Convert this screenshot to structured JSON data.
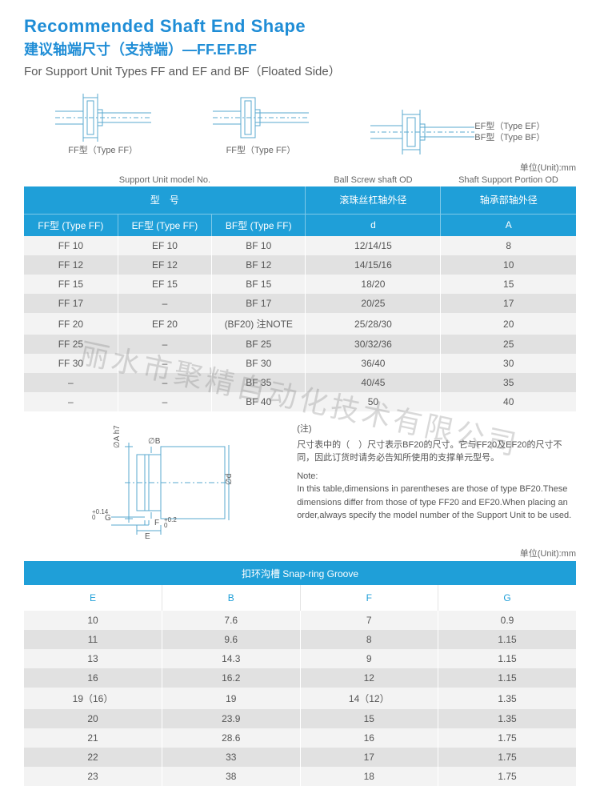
{
  "header": {
    "title_en": "Recommended Shaft End Shape",
    "title_cn": "建议轴端尺寸（支持端）—FF.EF.BF",
    "subtitle": "For Support Unit Types FF and EF and BF（Floated Side）",
    "unit_label": "单位(Unit):mm"
  },
  "diagram_labels": {
    "ff1": "FF型（Type FF）",
    "ff2": "FF型（Type FF）",
    "ef": "EF型（Type EF）",
    "bf": "BF型（Type BF）"
  },
  "col_labels_en": {
    "c1": "Support Unit model No.",
    "c2": "Ball Screw shaft OD",
    "c3": "Shaft Support Portion OD"
  },
  "table1": {
    "head_row1": {
      "h1": "型　号",
      "h2": "滚珠丝杠轴外径",
      "h3": "轴承部轴外径"
    },
    "head_row2": {
      "h1": "FF型 (Type FF)",
      "h2": "EF型 (Type FF)",
      "h3": "BF型 (Type FF)",
      "h4": "d",
      "h5": "A"
    },
    "rows": [
      [
        "FF 10",
        "EF 10",
        "BF 10",
        "12/14/15",
        "8"
      ],
      [
        "FF 12",
        "EF 12",
        "BF 12",
        "14/15/16",
        "10"
      ],
      [
        "FF 15",
        "EF 15",
        "BF 15",
        "18/20",
        "15"
      ],
      [
        "FF 17",
        "–",
        "BF 17",
        "20/25",
        "17"
      ],
      [
        "FF 20",
        "EF 20",
        "(BF20) 注NOTE",
        "25/28/30",
        "20"
      ],
      [
        "FF 25",
        "–",
        "BF 25",
        "30/32/36",
        "25"
      ],
      [
        "FF 30",
        "–",
        "BF 30",
        "36/40",
        "30"
      ],
      [
        "–",
        "–",
        "BF 35",
        "40/45",
        "35"
      ],
      [
        "–",
        "–",
        "BF 40",
        "50",
        "40"
      ]
    ]
  },
  "notes": {
    "cn_title": "(注)",
    "cn_body": "尺寸表中的（　）尺寸表示BF20的尺寸。它与FF20及EF20的尺寸不同，因此订货时请务必告知所使用的支撑单元型号。",
    "en_title": "Note:",
    "en_body": "In this table,dimensions in parentheses are those of type BF20.These dimensions differ from those of type FF20 and EF20.When placing an order,always specify the model number of the Support Unit to be used."
  },
  "dim_drawing": {
    "labels": {
      "A": "∅A h7",
      "B": "∅B",
      "d": "∅d",
      "E": "E",
      "F": "F",
      "G": "G",
      "F_tol": "+0.2\n 0",
      "G_tol": "+0.14\n 0"
    }
  },
  "table2": {
    "head1": "扣环沟槽  Snap-ring Groove",
    "head2": [
      "E",
      "B",
      "F",
      "G"
    ],
    "rows": [
      [
        "10",
        "7.6",
        "7",
        "0.9"
      ],
      [
        "11",
        "9.6",
        "8",
        "1.15"
      ],
      [
        "13",
        "14.3",
        "9",
        "1.15"
      ],
      [
        "16",
        "16.2",
        "12",
        "1.15"
      ],
      [
        "19（16）",
        "19",
        "14（12）",
        "1.35"
      ],
      [
        "20",
        "23.9",
        "15",
        "1.35"
      ],
      [
        "21",
        "28.6",
        "16",
        "1.75"
      ],
      [
        "22",
        "33",
        "17",
        "1.75"
      ],
      [
        "23",
        "38",
        "18",
        "1.75"
      ]
    ]
  },
  "watermark": "丽水市聚精自动化技术有限公司",
  "colors": {
    "header_blue": "#1f9fd8",
    "title_blue": "#1f8dd6",
    "row_light": "#f3f3f3",
    "row_dark": "#e1e1e1",
    "text": "#555"
  }
}
